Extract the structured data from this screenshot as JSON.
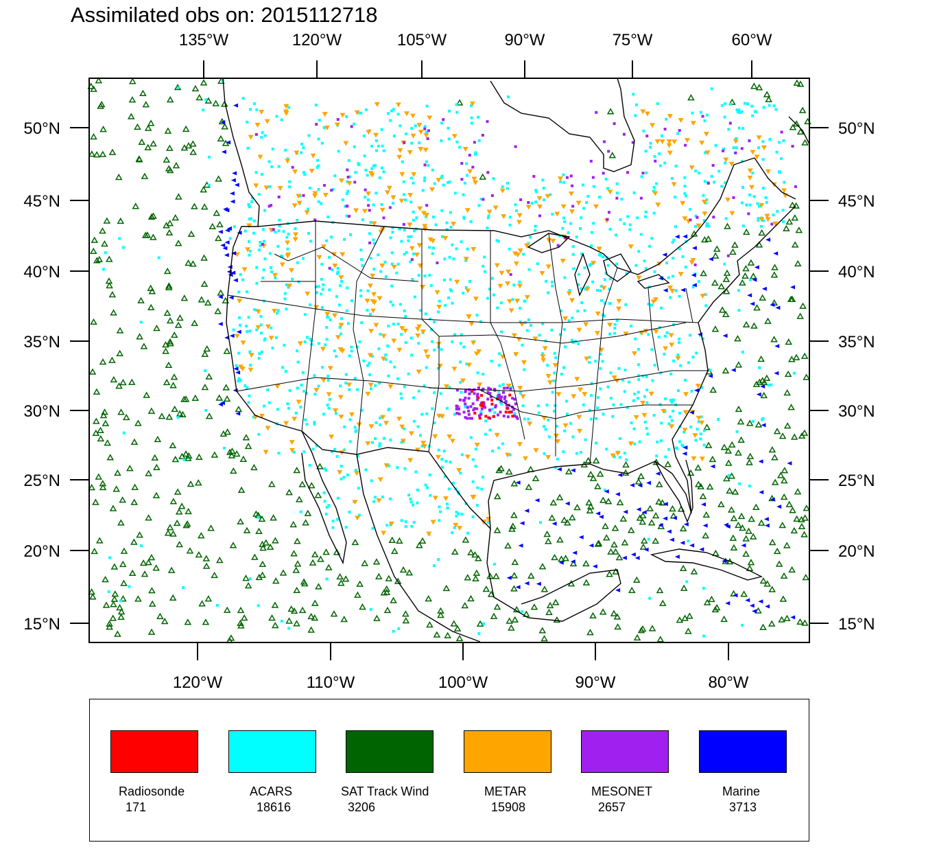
{
  "title": "Assimilated obs on: 2015112718",
  "top_axis_labels": [
    "135°W",
    "120°W",
    "105°W",
    "90°W",
    "75°W",
    "60°W"
  ],
  "bottom_axis_labels": [
    "120°W",
    "110°W",
    "100°W",
    "90°W",
    "80°W"
  ],
  "left_axis_labels": [
    "50°N",
    "45°N",
    "40°N",
    "35°N",
    "30°N",
    "25°N",
    "20°N",
    "15°N"
  ],
  "right_axis_labels": [
    "50°N",
    "45°N",
    "40°N",
    "35°N",
    "30°N",
    "25°N",
    "20°N",
    "15°N"
  ],
  "legend": [
    {
      "name": "Radiosonde",
      "count": "171",
      "color": "#ff0000"
    },
    {
      "name": "ACARS",
      "count": "18616",
      "color": "#00ffff"
    },
    {
      "name": "SAT Track Wind",
      "count": "3206",
      "color": "#006400"
    },
    {
      "name": "METAR",
      "count": "15908",
      "color": "#ffa500"
    },
    {
      "name": "MESONET",
      "count": "2657",
      "color": "#a020f0"
    },
    {
      "name": "Marine",
      "count": "3713",
      "color": "#0000ff"
    }
  ]
}
